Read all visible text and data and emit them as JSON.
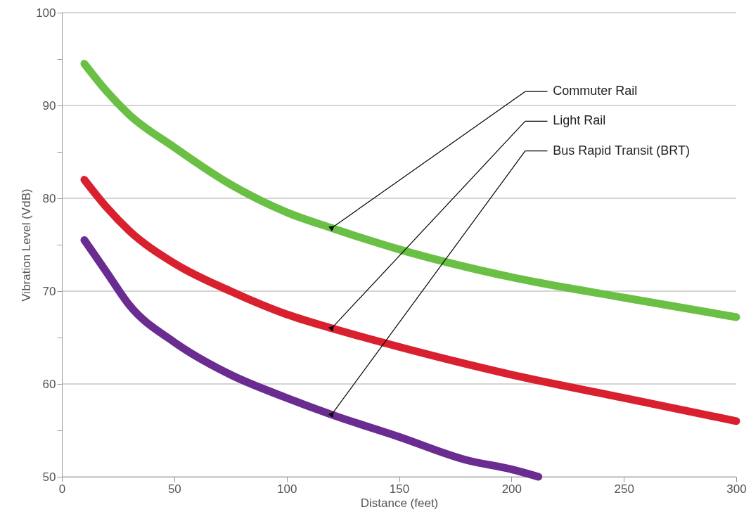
{
  "chart_data": {
    "type": "line",
    "xlabel": "Distance (feet)",
    "ylabel": "Vibration Level (VdB)",
    "xlim": [
      0,
      300
    ],
    "xticks": [
      0,
      50,
      100,
      150,
      200,
      250,
      300
    ],
    "ylim": [
      50,
      100
    ],
    "yticks": [
      50,
      {
        "value": 55,
        "label": null
      },
      60,
      {
        "value": 65,
        "label": null
      },
      70,
      {
        "value": 75,
        "label": null
      },
      80,
      {
        "value": 85,
        "label": null
      },
      90,
      {
        "value": 95,
        "label": null
      },
      100
    ],
    "grid": "y",
    "legend": "top right",
    "line_style": "solid",
    "series": [
      {
        "name": "Commuter Rail",
        "color": "#6abf45",
        "x": [
          10,
          20,
          30,
          50,
          75,
          100,
          120,
          150,
          200,
          250,
          300
        ],
        "values": [
          94.5,
          91.5,
          89,
          85.5,
          81.5,
          78.5,
          76.8,
          74.5,
          71.5,
          69.3,
          67.2
        ]
      },
      {
        "name": "Light Rail",
        "color": "#d9202f",
        "x": [
          10,
          20,
          30,
          50,
          75,
          100,
          120,
          150,
          200,
          250,
          300
        ],
        "values": [
          82,
          79,
          76.5,
          73,
          70,
          67.5,
          66,
          64,
          61,
          58.5,
          56
        ]
      },
      {
        "name": "Bus Rapid Transit (BRT)",
        "color": "#6a2c91",
        "x": [
          10,
          20,
          30,
          50,
          75,
          100,
          120,
          150,
          180,
          200,
          212
        ],
        "values": [
          75.5,
          72,
          68.5,
          64.5,
          61,
          58.5,
          56.7,
          54.3,
          51.8,
          50.8,
          50
        ]
      }
    ]
  }
}
